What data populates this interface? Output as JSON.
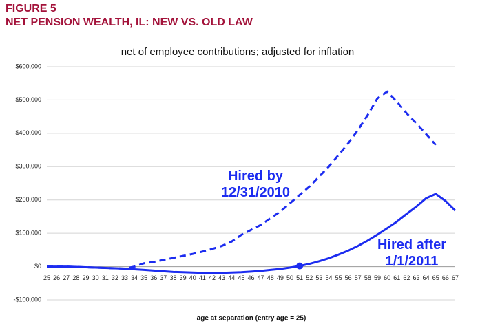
{
  "chart_data": {
    "type": "line",
    "figure_label": "FIGURE 5",
    "title": "NET PENSION WEALTH, IL: NEW VS. OLD LAW",
    "subtitle": "net of employee contributions; adjusted for inflation",
    "x_label": "age at separation (entry age = 25)",
    "x": [
      25,
      26,
      27,
      28,
      29,
      30,
      31,
      32,
      33,
      34,
      35,
      36,
      37,
      38,
      39,
      40,
      41,
      42,
      43,
      44,
      45,
      46,
      47,
      48,
      49,
      50,
      51,
      52,
      53,
      54,
      55,
      56,
      57,
      58,
      59,
      60,
      61,
      62,
      63,
      64,
      65,
      66,
      67
    ],
    "xlim": [
      25,
      67
    ],
    "xticks": [
      25,
      26,
      27,
      28,
      29,
      30,
      31,
      32,
      33,
      34,
      35,
      36,
      37,
      38,
      39,
      40,
      41,
      42,
      43,
      44,
      45,
      46,
      47,
      48,
      49,
      50,
      51,
      52,
      53,
      54,
      55,
      56,
      57,
      58,
      59,
      60,
      61,
      62,
      63,
      64,
      65,
      66,
      67
    ],
    "ylim": [
      -100000,
      600000
    ],
    "yticks": [
      {
        "value": -100000,
        "label": "-$100,000"
      },
      {
        "value": 0,
        "label": "$0"
      },
      {
        "value": 100000,
        "label": "$100,000"
      },
      {
        "value": 200000,
        "label": "$200,000"
      },
      {
        "value": 300000,
        "label": "$300,000"
      },
      {
        "value": 400000,
        "label": "$400,000"
      },
      {
        "value": 500000,
        "label": "$500,000"
      },
      {
        "value": 600000,
        "label": "$600,000"
      }
    ],
    "grid": true,
    "highlight": 51,
    "series": [
      {
        "name": "Hired by 12/31/2010",
        "color": "#1c2cf0",
        "dashed": true,
        "values": [
          0,
          0,
          0,
          -1000,
          -2000,
          -3000,
          -4000,
          -5000,
          -6000,
          0,
          10000,
          14000,
          20000,
          26000,
          32000,
          38000,
          45000,
          53000,
          62000,
          75000,
          95000,
          110000,
          125000,
          145000,
          165000,
          190000,
          215000,
          240000,
          270000,
          300000,
          335000,
          370000,
          410000,
          455000,
          505000,
          525000,
          495000,
          460000,
          430000,
          398000,
          365000,
          null,
          null
        ]
      },
      {
        "name": "Hired after 1/1/2011",
        "color": "#1c2cf0",
        "dashed": false,
        "values": [
          0,
          0,
          0,
          -1000,
          -2000,
          -3000,
          -4000,
          -5000,
          -6000,
          -8000,
          -10000,
          -12000,
          -14000,
          -16000,
          -17000,
          -18000,
          -19000,
          -19000,
          -19000,
          -18000,
          -17000,
          -15000,
          -13000,
          -10000,
          -7000,
          -3000,
          2000,
          8000,
          16000,
          25000,
          36000,
          48000,
          62000,
          78000,
          96000,
          115000,
          135000,
          158000,
          180000,
          205000,
          218000,
          197000,
          168000
        ]
      }
    ]
  }
}
